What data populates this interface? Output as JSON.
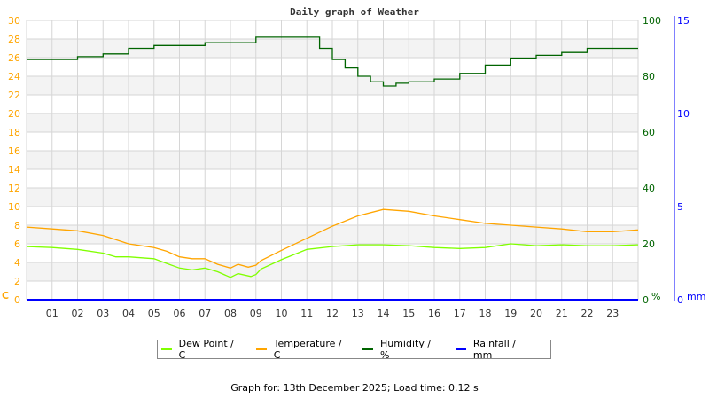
{
  "chart_data": {
    "type": "line",
    "title": "Daily graph of Weather",
    "x_ticks": [
      "01",
      "02",
      "03",
      "04",
      "05",
      "06",
      "07",
      "08",
      "09",
      "10",
      "11",
      "12",
      "13",
      "14",
      "15",
      "16",
      "17",
      "18",
      "19",
      "20",
      "21",
      "22",
      "23"
    ],
    "xlim": [
      0,
      24
    ],
    "grid": true,
    "legend_placement": "bottom",
    "axes": {
      "left": {
        "label": "C",
        "range": [
          0,
          30
        ],
        "ticks": [
          0,
          2,
          4,
          6,
          8,
          10,
          12,
          14,
          16,
          18,
          20,
          22,
          24,
          26,
          28,
          30
        ],
        "color": "#ffa500"
      },
      "right": {
        "label": "%",
        "range": [
          0,
          100
        ],
        "ticks": [
          0,
          20,
          40,
          60,
          80,
          100
        ],
        "color": "#006400"
      },
      "right2": {
        "label": "mm",
        "range": [
          0,
          15
        ],
        "ticks": [
          0,
          5,
          10,
          15
        ],
        "color": "#0000ff"
      }
    },
    "series": [
      {
        "name": "Dew Point / C",
        "axis": "left",
        "color": "#80ff00",
        "x": [
          0,
          1,
          2,
          3,
          3.5,
          4,
          5,
          5.5,
          6,
          6.5,
          7,
          7.5,
          8,
          8.3,
          8.8,
          9,
          9.2,
          10,
          11,
          12,
          13,
          14,
          15,
          16,
          17,
          18,
          19,
          20,
          21,
          22,
          23,
          24
        ],
        "y": [
          5.7,
          5.6,
          5.4,
          5.0,
          4.6,
          4.6,
          4.4,
          3.9,
          3.4,
          3.2,
          3.4,
          3.0,
          2.4,
          2.8,
          2.5,
          2.7,
          3.3,
          4.3,
          5.4,
          5.7,
          5.9,
          5.9,
          5.8,
          5.6,
          5.5,
          5.6,
          6.0,
          5.8,
          5.9,
          5.8,
          5.8,
          5.9
        ]
      },
      {
        "name": "Temperature / C",
        "axis": "left",
        "color": "#ffa500",
        "x": [
          0,
          1,
          2,
          3,
          4,
          5,
          5.5,
          6,
          6.5,
          7,
          7.5,
          8,
          8.3,
          8.7,
          9,
          9.2,
          10,
          11,
          12,
          13,
          14,
          15,
          16,
          17,
          18,
          19,
          20,
          21,
          22,
          23,
          24
        ],
        "y": [
          7.8,
          7.6,
          7.4,
          6.9,
          6.0,
          5.6,
          5.2,
          4.6,
          4.4,
          4.4,
          3.8,
          3.4,
          3.8,
          3.5,
          3.7,
          4.2,
          5.3,
          6.6,
          7.9,
          9.0,
          9.7,
          9.5,
          9.0,
          8.6,
          8.2,
          8.0,
          7.8,
          7.6,
          7.3,
          7.3,
          7.5
        ]
      },
      {
        "name": "Humidity / %",
        "axis": "right",
        "color": "#006400",
        "step": true,
        "x": [
          0,
          1,
          2,
          3,
          4,
          5,
          7,
          9,
          11,
          11.5,
          12,
          12.5,
          13,
          13.5,
          14,
          14.5,
          15,
          16,
          17,
          18,
          19,
          20,
          21,
          22,
          23,
          24
        ],
        "y": [
          86,
          86,
          87,
          88,
          90,
          91,
          92,
          94,
          94,
          90,
          86,
          83,
          80,
          78,
          76.5,
          77.5,
          78,
          79,
          81,
          84,
          86.5,
          87.5,
          88.5,
          90,
          90,
          90
        ]
      },
      {
        "name": "Rainfall / mm",
        "axis": "right2",
        "color": "#0000ff",
        "x": [
          0,
          24
        ],
        "y": [
          0,
          0
        ]
      }
    ]
  },
  "footer": "Graph for: 13th December 2025; Load time: 0.12 s"
}
